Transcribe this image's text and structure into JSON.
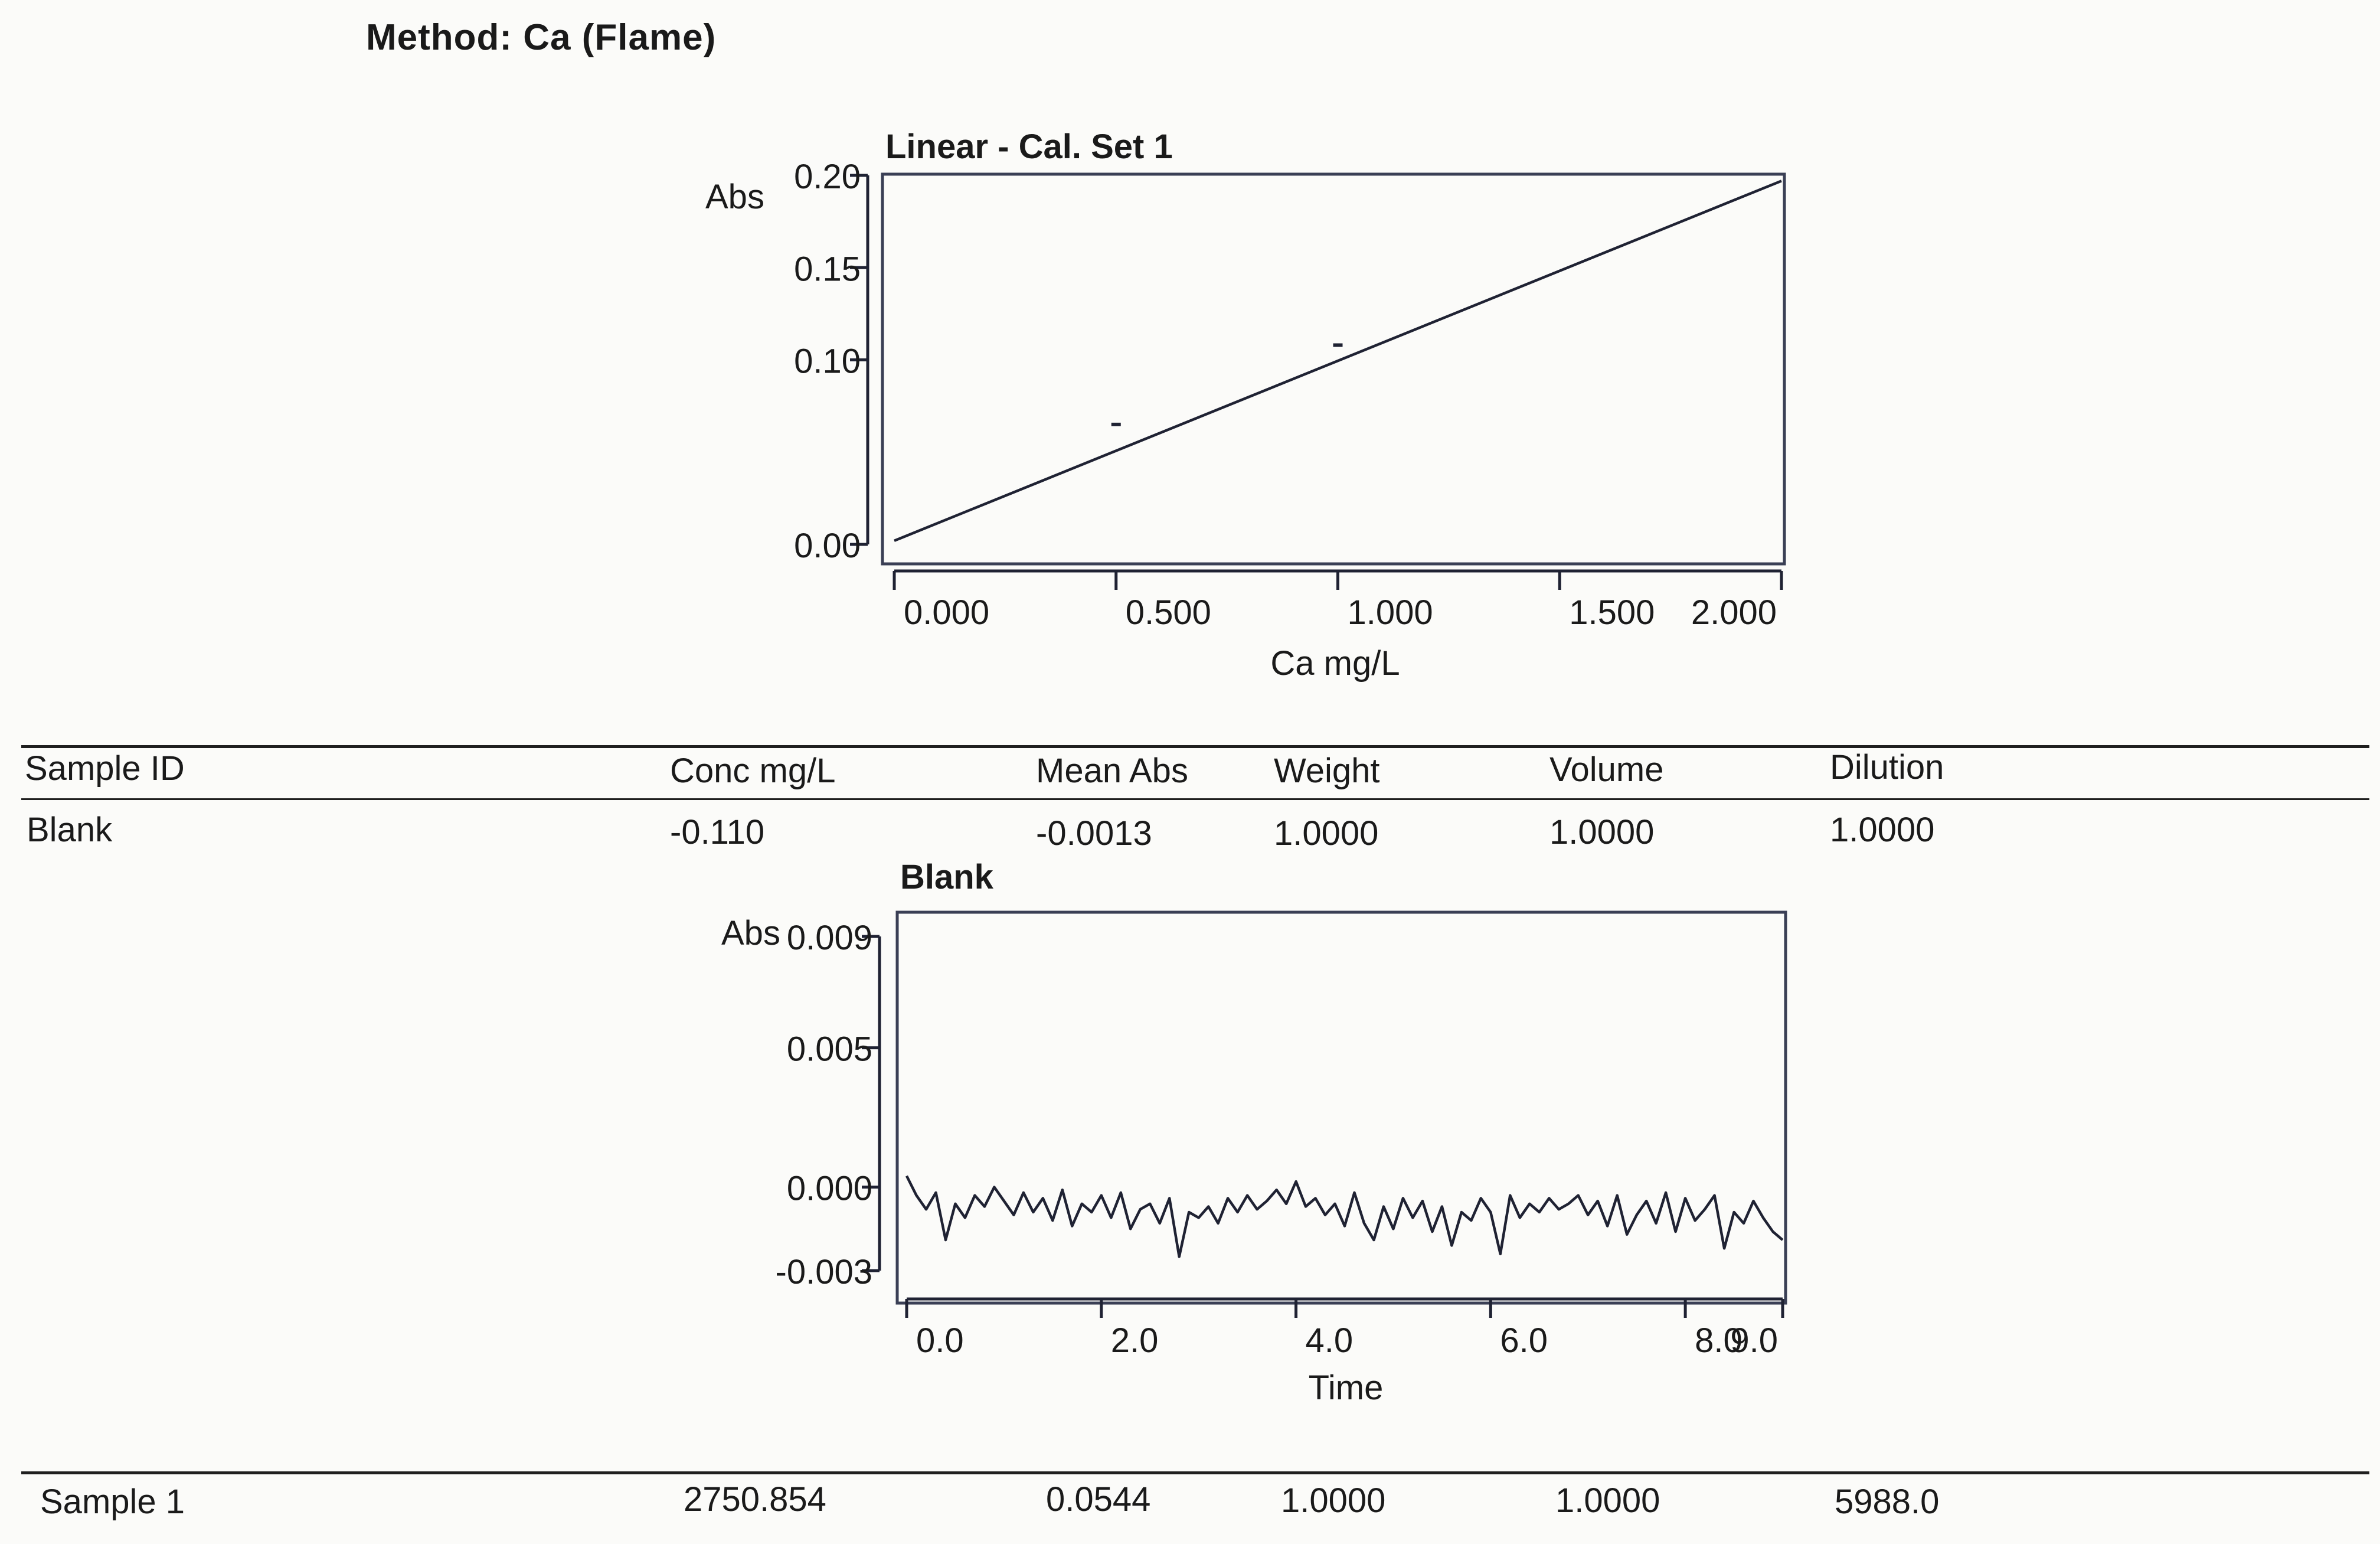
{
  "method_title": "Method: Ca (Flame)",
  "columns": [
    "Sample ID",
    "Conc  mg/L",
    "Mean Abs",
    "Weight",
    "Volume",
    "Dilution"
  ],
  "rows": [
    {
      "id": "Blank",
      "conc": "-0.110",
      "mean_abs": "-0.0013",
      "weight": "1.0000",
      "volume": "1.0000",
      "dilution": "1.0000"
    },
    {
      "id": "Sample 1",
      "conc": "2750.854",
      "mean_abs": "0.0544",
      "weight": "1.0000",
      "volume": "1.0000",
      "dilution": "5988.0"
    }
  ],
  "chart_data": [
    {
      "type": "line",
      "title": "Linear - Cal. Set 1",
      "xlabel": "Ca mg/L",
      "ylabel": "Abs",
      "xlim": [
        0,
        2.0
      ],
      "ylim": [
        0,
        0.2
      ],
      "x_ticks": [
        "0.000",
        "0.500",
        "1.000",
        "1.500",
        "2.000"
      ],
      "y_ticks": [
        "0.00",
        "0.10",
        "0.15",
        "0.20"
      ],
      "series": [
        {
          "x": [
            0,
            2.0
          ],
          "y": [
            0.002,
            0.197
          ]
        }
      ],
      "calibration_points": {
        "x": [
          0.5,
          1.0
        ],
        "y": [
          0.065,
          0.108
        ]
      }
    },
    {
      "type": "line",
      "title": "Blank",
      "xlabel": "Time",
      "ylabel": "Abs",
      "xlim": [
        0,
        9.0
      ],
      "ylim": [
        -0.003,
        0.009
      ],
      "x_ticks": [
        "0.0",
        "2.0",
        "4.0",
        "6.0",
        "8.0",
        "9.0"
      ],
      "y_ticks": [
        "-0.003",
        "0.000",
        "0.005",
        "0.009"
      ],
      "series": [
        {
          "x": [
            0.0,
            0.1,
            0.2,
            0.3,
            0.4,
            0.5,
            0.6,
            0.7,
            0.8,
            0.9,
            1.0,
            1.1,
            1.2,
            1.3,
            1.4,
            1.5,
            1.6,
            1.7,
            1.8,
            1.9,
            2.0,
            2.1,
            2.2,
            2.3,
            2.4,
            2.5,
            2.6,
            2.7,
            2.8,
            2.9,
            3.0,
            3.1,
            3.2,
            3.3,
            3.4,
            3.5,
            3.6,
            3.7,
            3.8,
            3.9,
            4.0,
            4.1,
            4.2,
            4.3,
            4.4,
            4.5,
            4.6,
            4.7,
            4.8,
            4.9,
            5.0,
            5.1,
            5.2,
            5.3,
            5.4,
            5.5,
            5.6,
            5.7,
            5.8,
            5.9,
            6.0,
            6.1,
            6.2,
            6.3,
            6.4,
            6.5,
            6.6,
            6.7,
            6.8,
            6.9,
            7.0,
            7.1,
            7.2,
            7.3,
            7.4,
            7.5,
            7.6,
            7.7,
            7.8,
            7.9,
            8.0,
            8.1,
            8.2,
            8.3,
            8.4,
            8.5,
            8.6,
            8.7,
            8.8,
            8.9,
            9.0
          ],
          "y": [
            0.0004,
            -0.0003,
            -0.0008,
            -0.0002,
            -0.0019,
            -0.0006,
            -0.0011,
            -0.0003,
            -0.0007,
            0.0,
            -0.0005,
            -0.001,
            -0.0002,
            -0.0009,
            -0.0004,
            -0.0012,
            -0.0001,
            -0.0014,
            -0.0006,
            -0.0009,
            -0.0003,
            -0.0011,
            -0.0002,
            -0.0015,
            -0.0008,
            -0.0006,
            -0.0013,
            -0.0004,
            -0.0025,
            -0.0009,
            -0.0011,
            -0.0007,
            -0.0013,
            -0.0004,
            -0.0009,
            -0.0003,
            -0.0008,
            -0.0005,
            -0.0001,
            -0.0006,
            0.0002,
            -0.0007,
            -0.0004,
            -0.001,
            -0.0006,
            -0.0014,
            -0.0002,
            -0.0013,
            -0.0019,
            -0.0007,
            -0.0015,
            -0.0004,
            -0.0011,
            -0.0005,
            -0.0016,
            -0.0007,
            -0.0021,
            -0.0009,
            -0.0012,
            -0.0004,
            -0.0009,
            -0.0024,
            -0.0003,
            -0.0011,
            -0.0006,
            -0.0009,
            -0.0004,
            -0.0008,
            -0.0006,
            -0.0003,
            -0.001,
            -0.0005,
            -0.0014,
            -0.0003,
            -0.0017,
            -0.001,
            -0.0005,
            -0.0013,
            -0.0002,
            -0.0016,
            -0.0004,
            -0.0012,
            -0.0008,
            -0.0003,
            -0.0022,
            -0.0009,
            -0.0013,
            -0.0005,
            -0.0011,
            -0.0016,
            -0.0019
          ]
        }
      ]
    }
  ]
}
